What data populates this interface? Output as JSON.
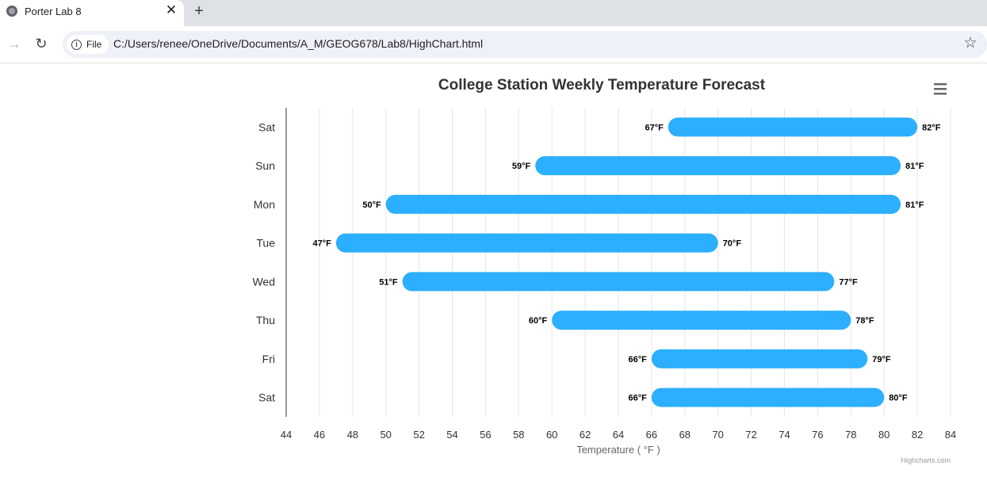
{
  "browser": {
    "tab_title": "Porter Lab 8",
    "tab_close": "✕",
    "new_tab": "+",
    "back_icon": "→",
    "reload_icon": "↻",
    "file_chip_label": "File",
    "url": "C:/Users/renee/OneDrive/Documents/A_M/GEOG678/Lab8/HighChart.html",
    "star_icon": "☆"
  },
  "chart_data": {
    "type": "bar",
    "subtype": "columnrange",
    "orientation": "horizontal",
    "title": "College Station Weekly Temperature Forecast",
    "xlabel": "Temperature ( °F )",
    "ylabel": "",
    "categories": [
      "Sat",
      "Sun",
      "Mon",
      "Tue",
      "Wed",
      "Thu",
      "Fri",
      "Sat"
    ],
    "series": [
      {
        "low": [
          67,
          59,
          50,
          47,
          51,
          60,
          66,
          66
        ],
        "high": [
          82,
          81,
          81,
          70,
          77,
          78,
          79,
          80
        ]
      }
    ],
    "low_labels": [
      "67°F",
      "59°F",
      "50°F",
      "47°F",
      "51°F",
      "60°F",
      "66°F",
      "66°F"
    ],
    "high_labels": [
      "82°F",
      "81°F",
      "81°F",
      "70°F",
      "77°F",
      "78°F",
      "79°F",
      "80°F"
    ],
    "xlim": [
      44,
      84
    ],
    "ticks": [
      "44",
      "46",
      "48",
      "50",
      "52",
      "54",
      "56",
      "58",
      "60",
      "62",
      "64",
      "66",
      "68",
      "70",
      "72",
      "74",
      "76",
      "78",
      "80",
      "82",
      "84"
    ],
    "grid": true,
    "legend": "none",
    "colors": {
      "bar": "#2caffe",
      "grid": "#e6e6e6",
      "axis": "#333333",
      "text": "#333333"
    },
    "credits": "Highcharts.com",
    "menu_icon": "hamburger-menu-icon"
  }
}
